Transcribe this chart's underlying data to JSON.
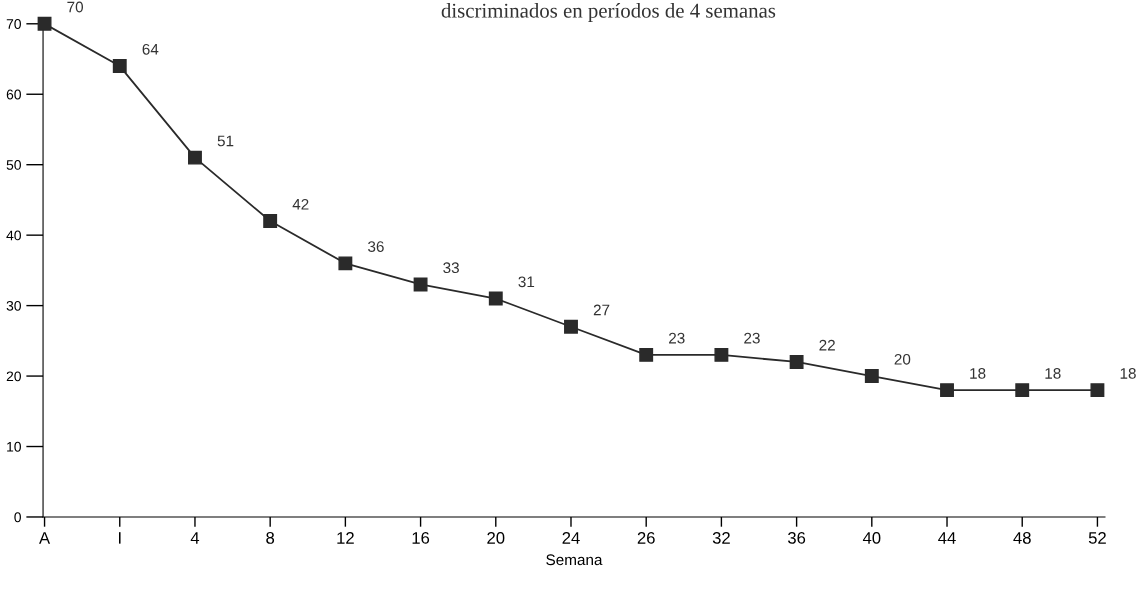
{
  "chart_data": {
    "type": "line",
    "title": "discriminados en períodos de 4 semanas",
    "xlabel": "Semana",
    "categories": [
      "A",
      "I",
      "4",
      "8",
      "12",
      "16",
      "20",
      "24",
      "26",
      "32",
      "36",
      "40",
      "44",
      "48",
      "52"
    ],
    "series": [
      {
        "color": "#2a2a2a",
        "values": [
          70,
          64,
          51,
          42,
          36,
          33,
          31,
          27,
          23,
          23,
          22,
          20,
          18,
          18,
          18
        ]
      }
    ],
    "ylim": [
      0,
      70
    ],
    "yticks": [
      0,
      10,
      20,
      30,
      40,
      50,
      60,
      70
    ],
    "data_labels": true,
    "marker": "square",
    "line_style": "solid",
    "grid": false,
    "legend": false
  }
}
